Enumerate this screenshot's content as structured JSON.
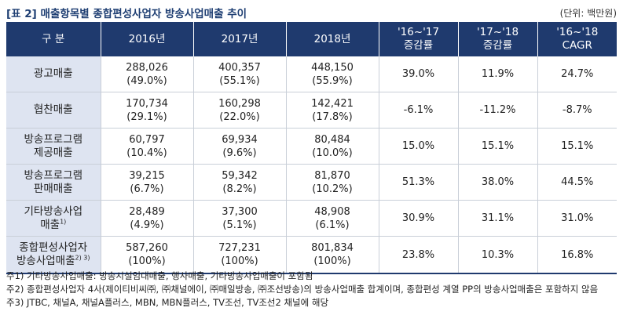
{
  "title": "[표 2] 매출항목별 종합편성사업자 방송사업매출 추이",
  "unit": "(단위: 백만원)",
  "header": {
    "category": "구 분",
    "y2016": "2016년",
    "y2017": "2017년",
    "y2018": "2018년",
    "chg1617_a": "'16~'17",
    "chg1617_b": "증감률",
    "chg1718_a": "'17~'18",
    "chg1718_b": "증감률",
    "cagr_a": "'16~'18",
    "cagr_b": "CAGR"
  },
  "rows": [
    {
      "label1": "광고매출",
      "label2": "",
      "sup": "",
      "v2016": "288,026",
      "p2016": "(49.0%)",
      "v2017": "400,357",
      "p2017": "(55.1%)",
      "v2018": "448,150",
      "p2018": "(55.9%)",
      "chg1617": "39.0%",
      "chg1718": "11.9%",
      "cagr": "24.7%"
    },
    {
      "label1": "협찬매출",
      "label2": "",
      "sup": "",
      "v2016": "170,734",
      "p2016": "(29.1%)",
      "v2017": "160,298",
      "p2017": "(22.0%)",
      "v2018": "142,421",
      "p2018": "(17.8%)",
      "chg1617": "-6.1%",
      "chg1718": "-11.2%",
      "cagr": "-8.7%"
    },
    {
      "label1": "방송프로그램",
      "label2": "제공매출",
      "sup": "",
      "v2016": "60,797",
      "p2016": "(10.4%)",
      "v2017": "69,934",
      "p2017": "(9.6%)",
      "v2018": "80,484",
      "p2018": "(10.0%)",
      "chg1617": "15.0%",
      "chg1718": "15.1%",
      "cagr": "15.1%"
    },
    {
      "label1": "방송프로그램",
      "label2": "판매매출",
      "sup": "",
      "v2016": "39,215",
      "p2016": "(6.7%)",
      "v2017": "59,342",
      "p2017": "(8.2%)",
      "v2018": "81,870",
      "p2018": "(10.2%)",
      "chg1617": "51.3%",
      "chg1718": "38.0%",
      "cagr": "44.5%"
    },
    {
      "label1": "기타방송사업",
      "label2": "매출",
      "sup": "1)",
      "v2016": "28,489",
      "p2016": "(4.9%)",
      "v2017": "37,300",
      "p2017": "(5.1%)",
      "v2018": "48,908",
      "p2018": "(6.1%)",
      "chg1617": "30.9%",
      "chg1718": "31.1%",
      "cagr": "31.0%"
    },
    {
      "label1": "종합편성사업자",
      "label2": "방송사업매출",
      "sup": "2) 3)",
      "v2016": "587,260",
      "p2016": "(100%)",
      "v2017": "727,231",
      "p2017": "(100%)",
      "v2018": "801,834",
      "p2018": "(100%)",
      "chg1617": "23.8%",
      "chg1718": "10.3%",
      "cagr": "16.8%"
    }
  ],
  "notes": [
    "주1) 기타방송사업매출: 방송시설임대매출, 행사매출, 기타방송사업매출이 포함됨",
    "주2) 종합편성사업자 4사(제이티비씨㈜, ㈜채널에이, ㈜매일방송, ㈜조선방송)의 방송사업매출 합계이며, 종합편성 계열 PP의 방송사업매출은 포함하지 않음",
    "주3) JTBC, 채널A, 채널A플러스, MBN, MBN플러스, TV조선, TV조선2 채널에 해당"
  ]
}
